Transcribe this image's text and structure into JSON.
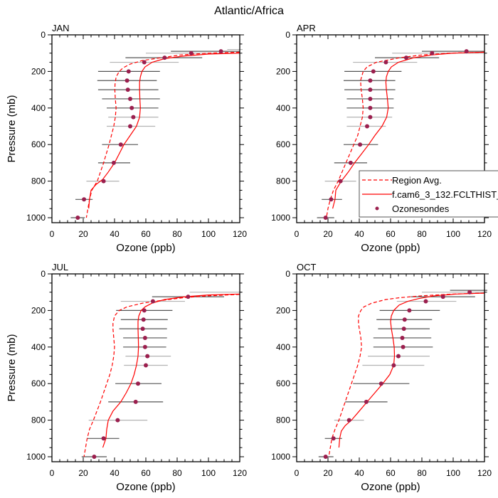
{
  "chart_data": {
    "type": "scatter",
    "title": "Atlantic/Africa",
    "xlabel": "Ozone (ppb)",
    "ylabel": "Pressure (mb)",
    "xlim": [
      0,
      120
    ],
    "ylim": [
      1000,
      0
    ],
    "y_inverted": true,
    "xticks": [
      0,
      20,
      40,
      60,
      80,
      100,
      120
    ],
    "xticks_minor_step": 5,
    "yticks": [
      0,
      200,
      400,
      600,
      800,
      1000
    ],
    "yticks_minor_step": 50,
    "grid": false,
    "legend": {
      "placement": "bottom-right of APR panel",
      "entries": [
        {
          "label": "Region Avg.",
          "style": "dashed-line"
        },
        {
          "label": "f.cam6_3_132.FCLTHIST_",
          "style": "solid-line"
        },
        {
          "label": "Ozonesondes",
          "style": "marker"
        }
      ]
    },
    "colors": {
      "model": "#ff0000",
      "region": "#ff0000",
      "marker": "#9b1f4e",
      "errorbar_dark": "#555555",
      "errorbar_light": "#b3b3b3"
    },
    "panels": [
      {
        "label": "JAN",
        "ozonesondes": {
          "pressure": [
            90,
            100,
            125,
            150,
            200,
            250,
            300,
            350,
            400,
            450,
            500,
            600,
            700,
            800,
            900,
            1000
          ],
          "ozone": [
            108,
            89,
            72,
            59,
            49,
            48,
            48.5,
            50,
            51,
            52,
            50,
            44,
            39.5,
            33,
            20.5,
            16.5
          ],
          "err_low": [
            76,
            60,
            47,
            37,
            29.5,
            29,
            29.5,
            32,
            35,
            36,
            35,
            32,
            29.5,
            22,
            15,
            12
          ],
          "err_high": [
            120,
            120,
            96,
            81,
            69,
            67,
            68,
            69,
            68,
            68,
            66,
            55,
            50,
            43,
            26,
            21
          ],
          "err_shade": [
            "dark",
            "light",
            "dark",
            "light",
            "dark",
            "dark",
            "dark",
            "dark",
            "dark",
            "light",
            "light",
            "dark",
            "dark",
            "light",
            "dark",
            "dark"
          ]
        },
        "extra_bars": [
          {
            "pressure": 80,
            "low": 112,
            "high": 120,
            "shade": "light"
          }
        ],
        "model": {
          "pressure": [
            100,
            105,
            115,
            130,
            150,
            175,
            200,
            230,
            260,
            300,
            350,
            400,
            450,
            500,
            550,
            600,
            650,
            700,
            750,
            790,
            820,
            850,
            900,
            950
          ],
          "ozone": [
            120,
            100,
            85,
            72,
            64,
            59.5,
            57.5,
            56.5,
            56,
            56,
            56.2,
            56.5,
            56,
            54,
            50,
            46,
            43,
            40,
            36,
            32.5,
            28,
            25,
            24,
            23.5
          ]
        },
        "region": {
          "pressure": [
            95,
            100,
            110,
            125,
            140,
            160,
            180,
            200,
            230,
            270,
            300,
            350,
            400,
            450,
            500,
            550,
            600,
            700,
            800,
            850,
            900,
            950,
            1000
          ],
          "ozone": [
            120,
            100,
            82,
            70,
            58,
            50,
            45.5,
            43,
            41,
            40.3,
            40.2,
            40.5,
            41,
            40.5,
            39.5,
            38,
            36.5,
            33,
            29,
            25.5,
            24,
            23,
            22
          ]
        }
      },
      {
        "label": "APR",
        "ozonesondes": {
          "pressure": [
            90,
            100,
            125,
            150,
            200,
            250,
            300,
            350,
            400,
            450,
            500,
            600,
            700,
            800,
            900,
            1000
          ],
          "ozone": [
            108.5,
            86.5,
            70,
            57,
            49,
            47,
            47,
            47,
            47,
            47,
            45,
            40.5,
            34.5,
            28,
            22,
            18.5
          ],
          "err_low": [
            80,
            61,
            50,
            36,
            30.5,
            30,
            30.5,
            32,
            32,
            32,
            32,
            30,
            24,
            18,
            16,
            13
          ],
          "err_high": [
            120,
            120,
            91,
            77,
            67,
            63,
            63,
            62,
            62,
            61,
            57,
            52,
            45,
            38,
            29,
            24
          ],
          "err_shade": [
            "dark",
            "light",
            "dark",
            "light",
            "dark",
            "dark",
            "dark",
            "dark",
            "dark",
            "light",
            "light",
            "dark",
            "dark",
            "light",
            "dark",
            "dark"
          ]
        },
        "extra_bars": [],
        "model": {
          "pressure": [
            95,
            100,
            110,
            125,
            150,
            175,
            200,
            230,
            260,
            300,
            350,
            400,
            450,
            500,
            550,
            600,
            650,
            700,
            750,
            800,
            850,
            900,
            950
          ],
          "ozone": [
            120,
            100,
            86,
            75,
            65,
            60.5,
            58.5,
            57.3,
            57,
            57.3,
            58,
            58.5,
            57.5,
            54.5,
            50,
            46,
            41.5,
            37,
            33,
            28.5,
            25,
            24.5,
            23
          ]
        },
        "region": {
          "pressure": [
            95,
            100,
            110,
            125,
            150,
            175,
            200,
            250,
            300,
            350,
            400,
            450,
            500,
            550,
            600,
            700,
            800,
            850,
            900,
            950,
            1000
          ],
          "ozone": [
            120,
            98,
            80,
            66,
            51,
            45,
            42.5,
            40.8,
            41.2,
            42,
            42.5,
            42,
            40.5,
            39,
            36.5,
            31.5,
            26.5,
            23.5,
            21.5,
            20,
            19
          ]
        }
      },
      {
        "label": "JUL",
        "ozonesondes": {
          "pressure": [
            125,
            150,
            200,
            250,
            300,
            350,
            400,
            450,
            500,
            600,
            700,
            800,
            900,
            1000
          ],
          "ozone": [
            87,
            64.5,
            59,
            58.5,
            58,
            59.5,
            59.5,
            61,
            60,
            55,
            53.5,
            42,
            33,
            27
          ],
          "err_low": [
            64,
            44,
            41,
            44,
            43,
            45.5,
            45.5,
            47,
            46,
            40.5,
            36,
            23.5,
            22.5,
            19
          ],
          "err_high": [
            110,
            85,
            77,
            74,
            73.5,
            73.5,
            73,
            76,
            74,
            70,
            71,
            61,
            43,
            35
          ],
          "err_shade": [
            "dark",
            "light",
            "dark",
            "dark",
            "dark",
            "dark",
            "dark",
            "light",
            "light",
            "dark",
            "dark",
            "light",
            "dark",
            "dark"
          ]
        },
        "extra_bars": [
          {
            "pressure": 100,
            "low": 88,
            "high": 120,
            "shade": "light"
          }
        ],
        "model": {
          "pressure": [
            110,
            115,
            125,
            140,
            160,
            180,
            200,
            230,
            260,
            300,
            350,
            400,
            450,
            500,
            550,
            600,
            650,
            700,
            750,
            800,
            850,
            900,
            950
          ],
          "ozone": [
            120,
            100,
            85,
            72,
            64,
            59.5,
            57,
            55.5,
            55,
            55,
            55.2,
            55.3,
            55,
            54,
            52.5,
            50.5,
            47.5,
            44,
            39,
            36,
            35,
            34.5,
            32.5
          ]
        },
        "region": {
          "pressure": [
            112,
            120,
            130,
            145,
            160,
            180,
            200,
            230,
            270,
            300,
            350,
            400,
            450,
            500,
            550,
            600,
            700,
            800,
            850,
            900,
            950,
            1000
          ],
          "ozone": [
            120,
            100,
            84,
            70,
            58,
            48,
            43,
            40,
            39,
            39,
            39.5,
            40,
            39.5,
            38.5,
            37,
            35,
            31,
            26.5,
            24,
            22.5,
            21.5,
            20.5
          ]
        }
      },
      {
        "label": "OCT",
        "ozonesondes": {
          "pressure": [
            100,
            125,
            150,
            200,
            250,
            300,
            350,
            400,
            450,
            500,
            600,
            700,
            800,
            900,
            1000
          ],
          "ozone": [
            110.5,
            93.5,
            82.5,
            72,
            69,
            68.5,
            67.5,
            68,
            65,
            62,
            54,
            44.5,
            33.5,
            23.5,
            18.5
          ],
          "err_low": [
            80,
            73,
            64,
            53,
            51,
            52,
            49,
            49,
            45.5,
            42,
            36,
            31,
            24,
            18,
            14
          ],
          "err_high": [
            120,
            114,
            102,
            91.5,
            86.5,
            85,
            86,
            87,
            85,
            81.5,
            72,
            58,
            43,
            29,
            23.5
          ],
          "err_shade": [
            "light",
            "dark",
            "light",
            "dark",
            "dark",
            "dark",
            "dark",
            "dark",
            "light",
            "light",
            "dark",
            "dark",
            "light",
            "dark",
            "dark"
          ]
        },
        "extra_bars": [
          {
            "pressure": 90,
            "low": 98,
            "high": 120,
            "shade": "dark"
          }
        ],
        "model": {
          "pressure": [
            105,
            110,
            120,
            135,
            150,
            170,
            200,
            230,
            260,
            300,
            350,
            400,
            450,
            500,
            550,
            600,
            650,
            700,
            750,
            800,
            830,
            860,
            900,
            950
          ],
          "ozone": [
            120,
            102,
            88,
            78,
            71,
            65.5,
            62,
            60.5,
            60,
            60.5,
            61.5,
            62.3,
            62.5,
            62,
            59.5,
            55,
            50,
            45,
            40,
            35,
            31,
            28.5,
            27.5,
            27
          ]
        },
        "region": {
          "pressure": [
            105,
            110,
            120,
            130,
            140,
            160,
            180,
            200,
            230,
            270,
            300,
            350,
            400,
            450,
            500,
            550,
            600,
            700,
            800,
            850,
            900,
            950,
            1000
          ],
          "ozone": [
            120,
            100,
            80,
            66,
            57,
            48,
            43,
            41,
            39.5,
            39.5,
            40,
            41,
            41.5,
            40.5,
            39,
            37,
            35,
            31,
            27,
            24.5,
            22.5,
            21.5,
            20.5
          ]
        }
      }
    ]
  }
}
